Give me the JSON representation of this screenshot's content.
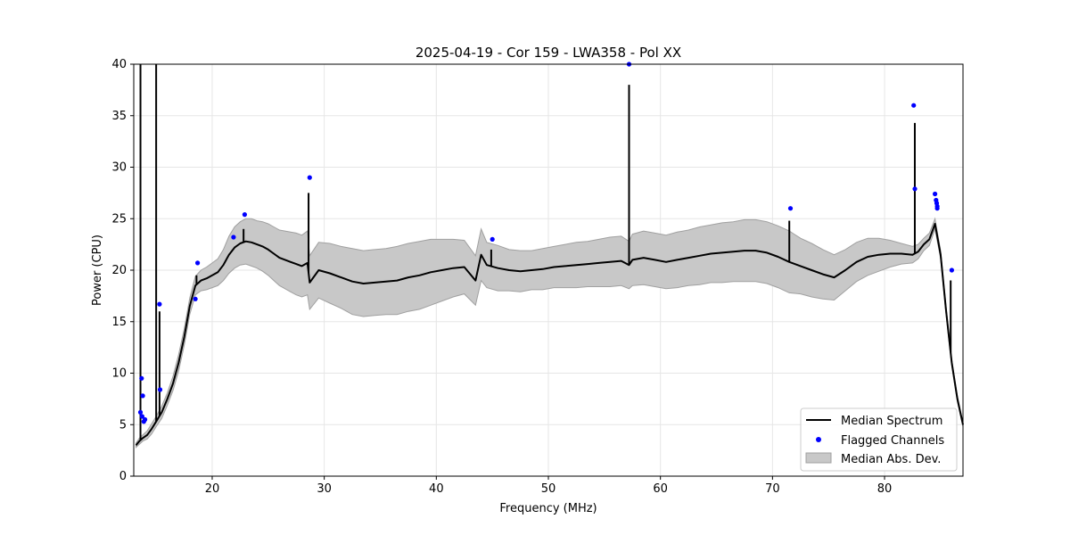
{
  "chart_data": {
    "type": "line",
    "title": "2025-04-19 - Cor 159 - LWA358 - Pol XX",
    "xlabel": "Frequency (MHz)",
    "ylabel": "Power (CPU)",
    "xlim": [
      13.0,
      87.0
    ],
    "ylim": [
      0,
      40
    ],
    "xticks": [
      20,
      30,
      40,
      50,
      60,
      70,
      80
    ],
    "yticks": [
      0,
      5,
      10,
      15,
      20,
      25,
      30,
      35,
      40
    ],
    "grid": true,
    "legend_position": "lower-right",
    "colors": {
      "median": "#000000",
      "flagged": "#0000ff",
      "mad_fill": "#c8c8c8",
      "mad_edge": "#a0a0a0",
      "grid": "#e6e6e6"
    },
    "series": [
      {
        "name": "Median Spectrum",
        "kind": "line",
        "x": [
          13.2,
          13.5,
          13.8,
          14.2,
          14.6,
          15.0,
          15.5,
          16.0,
          16.5,
          17.0,
          17.5,
          18.0,
          18.5,
          19.0,
          19.5,
          20.0,
          20.5,
          21.0,
          21.5,
          22.0,
          22.5,
          23.0,
          23.5,
          24.0,
          24.5,
          25.0,
          25.5,
          26.0,
          26.5,
          27.0,
          27.5,
          28.0,
          28.5,
          28.7,
          29.5,
          30.5,
          31.5,
          32.5,
          33.5,
          34.5,
          35.5,
          36.5,
          37.5,
          38.5,
          39.5,
          40.5,
          41.5,
          42.5,
          43.5,
          44.0,
          44.5,
          45.5,
          46.5,
          47.5,
          48.5,
          49.5,
          50.5,
          51.5,
          52.5,
          53.5,
          54.5,
          55.5,
          56.5,
          57.2,
          57.5,
          58.5,
          59.5,
          60.5,
          61.5,
          62.5,
          63.5,
          64.5,
          65.5,
          66.5,
          67.5,
          68.5,
          69.5,
          70.5,
          71.5,
          72.5,
          73.5,
          74.5,
          75.5,
          76.5,
          77.5,
          78.5,
          79.5,
          80.5,
          81.5,
          82.5,
          83.0,
          83.5,
          84.0,
          84.5,
          85.0,
          85.5,
          86.0,
          86.5,
          87.0
        ],
        "y": [
          3.0,
          3.4,
          3.7,
          4.0,
          4.6,
          5.3,
          6.2,
          7.5,
          9.0,
          11.0,
          13.5,
          16.5,
          18.5,
          19.0,
          19.2,
          19.5,
          19.8,
          20.5,
          21.5,
          22.2,
          22.6,
          22.8,
          22.7,
          22.5,
          22.3,
          22.0,
          21.6,
          21.2,
          21.0,
          20.8,
          20.6,
          20.4,
          20.7,
          18.8,
          20.0,
          19.7,
          19.3,
          18.9,
          18.7,
          18.8,
          18.9,
          19.0,
          19.3,
          19.5,
          19.8,
          20.0,
          20.2,
          20.3,
          19.0,
          21.5,
          20.5,
          20.2,
          20.0,
          19.9,
          20.0,
          20.1,
          20.3,
          20.4,
          20.5,
          20.6,
          20.7,
          20.8,
          20.9,
          20.5,
          21.0,
          21.2,
          21.0,
          20.8,
          21.0,
          21.2,
          21.4,
          21.6,
          21.7,
          21.8,
          21.9,
          21.9,
          21.7,
          21.3,
          20.8,
          20.4,
          20.0,
          19.6,
          19.3,
          20.0,
          20.8,
          21.3,
          21.5,
          21.6,
          21.6,
          21.5,
          21.8,
          22.5,
          23.0,
          24.5,
          21.5,
          16.0,
          11.0,
          7.5,
          5.0
        ],
        "mad": [
          0.2,
          0.3,
          0.3,
          0.4,
          0.5,
          0.5,
          0.6,
          0.6,
          0.7,
          0.8,
          0.8,
          0.8,
          0.9,
          1.0,
          1.1,
          1.2,
          1.3,
          1.5,
          1.8,
          2.0,
          2.1,
          2.2,
          2.3,
          2.3,
          2.4,
          2.5,
          2.6,
          2.7,
          2.8,
          2.9,
          3.0,
          3.0,
          3.1,
          2.6,
          2.7,
          2.9,
          3.0,
          3.2,
          3.2,
          3.2,
          3.2,
          3.3,
          3.3,
          3.3,
          3.2,
          3.0,
          2.8,
          2.6,
          2.4,
          2.5,
          2.2,
          2.2,
          2.0,
          2.0,
          1.9,
          2.0,
          2.0,
          2.1,
          2.2,
          2.2,
          2.3,
          2.4,
          2.4,
          2.3,
          2.5,
          2.6,
          2.6,
          2.6,
          2.7,
          2.7,
          2.8,
          2.8,
          2.9,
          2.9,
          3.0,
          3.0,
          3.0,
          3.0,
          3.0,
          2.7,
          2.6,
          2.4,
          2.2,
          2.0,
          1.9,
          1.8,
          1.6,
          1.3,
          1.0,
          0.8,
          0.7,
          0.6,
          0.6,
          0.5,
          0.4,
          0.4,
          0.3,
          0.3,
          0.2
        ],
        "spikes": [
          {
            "x": 13.6,
            "y": 40.0
          },
          {
            "x": 15.0,
            "y": 40.0
          },
          {
            "x": 15.3,
            "y": 16.0
          },
          {
            "x": 18.6,
            "y": 19.5
          },
          {
            "x": 22.8,
            "y": 24.0
          },
          {
            "x": 28.6,
            "y": 27.5
          },
          {
            "x": 44.9,
            "y": 22.0
          },
          {
            "x": 57.2,
            "y": 38.0
          },
          {
            "x": 71.5,
            "y": 24.8
          },
          {
            "x": 82.7,
            "y": 34.3
          },
          {
            "x": 85.9,
            "y": 19.0
          }
        ]
      },
      {
        "name": "Flagged Channels",
        "kind": "points",
        "x": [
          13.6,
          13.7,
          13.75,
          13.8,
          13.9,
          14.0,
          15.3,
          15.35,
          18.5,
          18.7,
          21.9,
          22.9,
          28.7,
          45.0,
          57.2,
          71.6,
          82.6,
          82.7,
          84.5,
          84.6,
          84.65,
          84.7,
          84.7,
          86.0
        ],
        "y": [
          6.2,
          9.5,
          5.8,
          7.8,
          5.3,
          5.5,
          16.7,
          8.4,
          17.2,
          20.7,
          23.2,
          25.4,
          29.0,
          23.0,
          40.0,
          26.0,
          36.0,
          27.9,
          27.4,
          26.8,
          26.5,
          26.2,
          26.0,
          20.0
        ]
      },
      {
        "name": "Median Abs. Dev.",
        "kind": "band"
      }
    ]
  }
}
